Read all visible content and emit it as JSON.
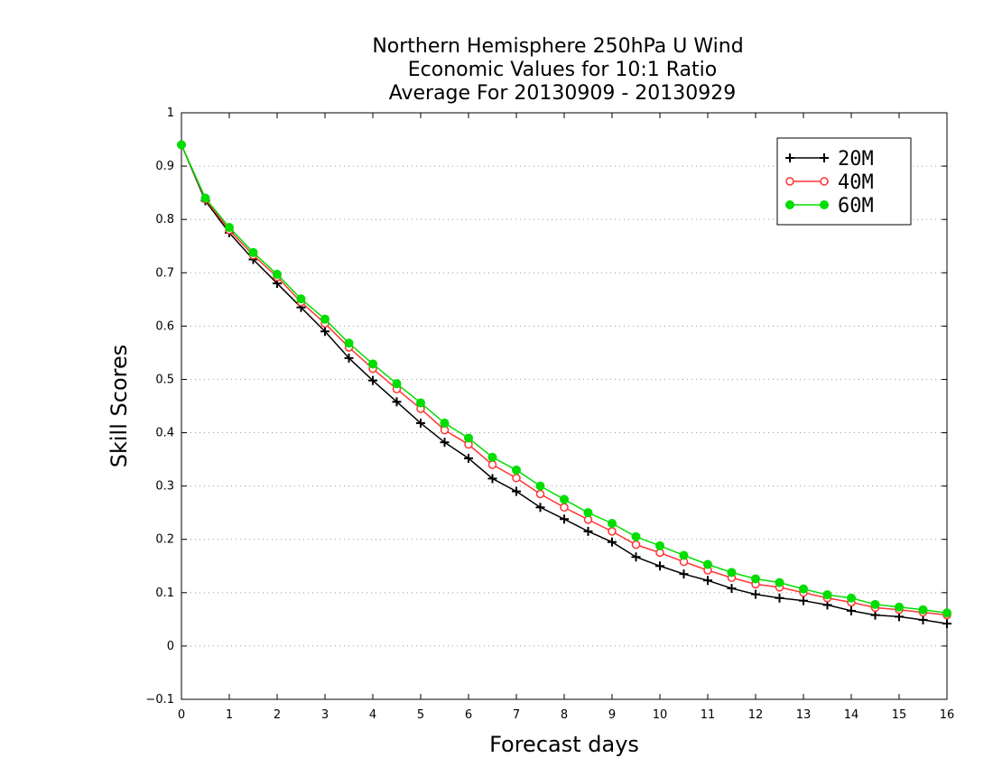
{
  "chart_data": {
    "type": "line",
    "title_lines": [
      "Northern Hemisphere 250hPa U Wind",
      "Economic Values for 10:1 Ratio",
      "Average For 20130909 - 20130929"
    ],
    "xlabel": "Forecast days",
    "ylabel": "Skill Scores",
    "xlim": [
      0,
      16
    ],
    "ylim": [
      -0.1,
      1
    ],
    "x_ticks": [
      "0",
      "1",
      "2",
      "3",
      "4",
      "5",
      "6",
      "7",
      "8",
      "9",
      "10",
      "11",
      "12",
      "13",
      "14",
      "15",
      "16"
    ],
    "y_ticks": [
      "−0.1",
      "0",
      "0.1",
      "0.2",
      "0.3",
      "0.4",
      "0.5",
      "0.6",
      "0.7",
      "0.8",
      "0.9",
      "1"
    ],
    "grid": "horizontal dotted",
    "legend_position": "top-right",
    "x": [
      0,
      0.5,
      1,
      1.5,
      2,
      2.5,
      3,
      3.5,
      4,
      4.5,
      5,
      5.5,
      6,
      6.5,
      7,
      7.5,
      8,
      8.5,
      9,
      9.5,
      10,
      10.5,
      11,
      11.5,
      12,
      12.5,
      13,
      13.5,
      14,
      14.5,
      15,
      15.5,
      16
    ],
    "series": [
      {
        "name": "20M",
        "color": "#000000",
        "marker": "plus",
        "values": [
          0.94,
          0.835,
          0.775,
          0.725,
          0.68,
          0.635,
          0.59,
          0.54,
          0.498,
          0.458,
          0.418,
          0.382,
          0.352,
          0.314,
          0.29,
          0.26,
          0.238,
          0.215,
          0.195,
          0.167,
          0.15,
          0.135,
          0.123,
          0.108,
          0.097,
          0.09,
          0.085,
          0.077,
          0.066,
          0.058,
          0.055,
          0.049,
          0.042
        ]
      },
      {
        "name": "40M",
        "color": "#ff3333",
        "marker": "open-circle",
        "values": [
          0.94,
          0.838,
          0.78,
          0.733,
          0.692,
          0.645,
          0.605,
          0.56,
          0.52,
          0.482,
          0.445,
          0.405,
          0.378,
          0.34,
          0.315,
          0.285,
          0.26,
          0.237,
          0.215,
          0.19,
          0.175,
          0.158,
          0.142,
          0.128,
          0.116,
          0.11,
          0.1,
          0.09,
          0.082,
          0.072,
          0.068,
          0.063,
          0.058
        ]
      },
      {
        "name": "60M",
        "color": "#00dd00",
        "marker": "filled-circle",
        "values": [
          0.94,
          0.84,
          0.785,
          0.738,
          0.697,
          0.651,
          0.613,
          0.568,
          0.529,
          0.492,
          0.456,
          0.418,
          0.39,
          0.354,
          0.33,
          0.3,
          0.275,
          0.25,
          0.23,
          0.205,
          0.188,
          0.17,
          0.153,
          0.138,
          0.126,
          0.119,
          0.107,
          0.096,
          0.09,
          0.078,
          0.073,
          0.068,
          0.062
        ]
      }
    ]
  }
}
